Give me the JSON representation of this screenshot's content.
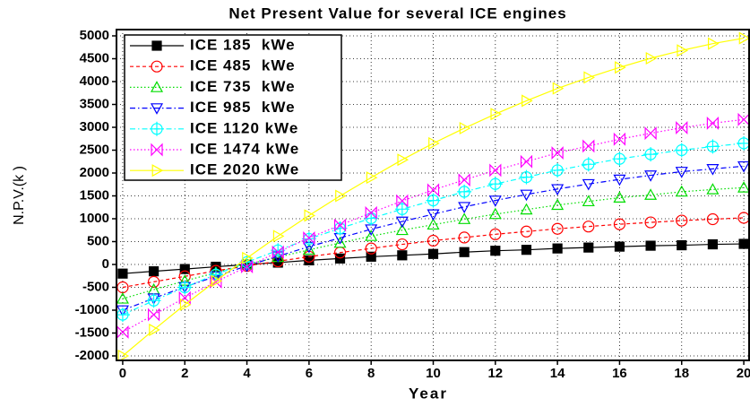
{
  "chart_data": {
    "type": "line",
    "title": "Net Present Value for several ICE engines",
    "x_label": "Year",
    "y_label": "N.P.V.(k )",
    "x": [
      0,
      1,
      2,
      3,
      4,
      5,
      6,
      7,
      8,
      9,
      10,
      11,
      12,
      13,
      14,
      15,
      16,
      17,
      18,
      19,
      20
    ],
    "xlim": [
      -0.2,
      20.2
    ],
    "xticks": [
      0,
      2,
      4,
      6,
      8,
      10,
      12,
      14,
      16,
      18,
      20
    ],
    "ylim": [
      -2000,
      5000
    ],
    "yticks": [
      -2000,
      -1500,
      -1000,
      -500,
      0,
      500,
      1000,
      1500,
      2000,
      2500,
      3000,
      3500,
      4000,
      4500,
      5000
    ],
    "grid": true,
    "legend": "upper-left",
    "series": [
      {
        "name": "ICE 185  kWe",
        "color": "#000000",
        "marker": "square",
        "dash": "solid",
        "values": [
          -200,
          -150,
          -100,
          -50,
          0,
          40,
          90,
          130,
          170,
          200,
          230,
          270,
          300,
          320,
          350,
          370,
          390,
          410,
          420,
          440,
          450
        ]
      },
      {
        "name": "ICE 485  kWe",
        "color": "#ff0000",
        "marker": "circle",
        "dash": "dashed",
        "values": [
          -500,
          -380,
          -260,
          -140,
          -30,
          70,
          170,
          260,
          350,
          440,
          520,
          590,
          660,
          720,
          780,
          830,
          880,
          920,
          960,
          990,
          1020
        ]
      },
      {
        "name": "ICE 735  kWe",
        "color": "#00dd00",
        "marker": "triangle-up",
        "dash": "dotted",
        "values": [
          -750,
          -550,
          -360,
          -180,
          0,
          160,
          320,
          470,
          620,
          750,
          870,
          990,
          1100,
          1200,
          1300,
          1380,
          1460,
          1520,
          1590,
          1640,
          1680
        ]
      },
      {
        "name": "ICE 985  kWe",
        "color": "#0000ff",
        "marker": "triangle-down",
        "dash": "dashdot",
        "values": [
          -1000,
          -740,
          -490,
          -260,
          -30,
          180,
          390,
          580,
          770,
          940,
          1100,
          1260,
          1400,
          1530,
          1650,
          1760,
          1860,
          1950,
          2030,
          2090,
          2150
        ]
      },
      {
        "name": "ICE 1120 kWe",
        "color": "#00ffff",
        "marker": "circle-plus",
        "dash": "dashdot",
        "values": [
          -1100,
          -790,
          -500,
          -220,
          50,
          310,
          560,
          790,
          1010,
          1210,
          1400,
          1590,
          1760,
          1910,
          2060,
          2190,
          2310,
          2410,
          2500,
          2580,
          2650
        ]
      },
      {
        "name": "ICE 1474 kWe",
        "color": "#ff00ff",
        "marker": "bowtie",
        "dash": "dotted",
        "values": [
          -1480,
          -1100,
          -730,
          -380,
          -50,
          270,
          580,
          860,
          1130,
          1390,
          1630,
          1850,
          2060,
          2250,
          2440,
          2590,
          2740,
          2870,
          2990,
          3090,
          3170
        ]
      },
      {
        "name": "ICE 2020 kWe",
        "color": "#ffff00",
        "marker": "triangle-right",
        "dash": "solid",
        "values": [
          -2000,
          -1430,
          -880,
          -360,
          140,
          620,
          1070,
          1500,
          1900,
          2290,
          2650,
          2980,
          3290,
          3580,
          3850,
          4090,
          4310,
          4510,
          4680,
          4830,
          4950
        ]
      }
    ]
  }
}
